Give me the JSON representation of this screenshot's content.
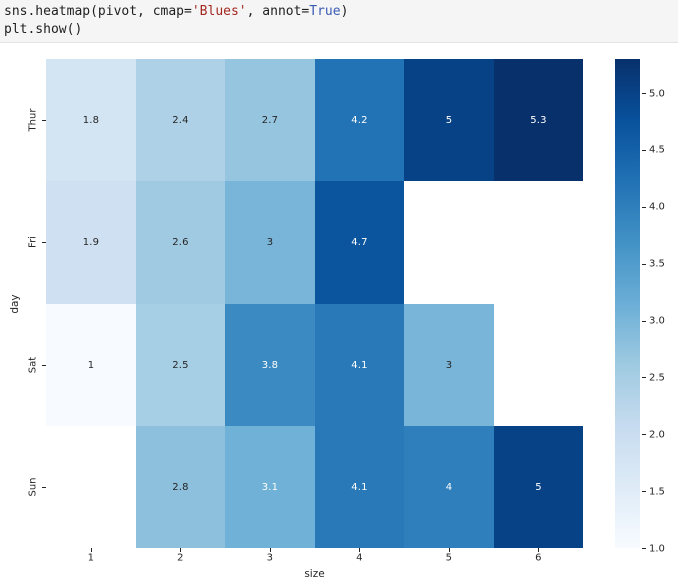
{
  "code_cell": {
    "token_colors": {
      "default": "#1f1f1f",
      "string": "#a3271f",
      "keyword": "#3a5ab4"
    },
    "lines": [
      {
        "tokens": [
          {
            "t": "sns.heatmap(pivot, cmap=",
            "c": "default"
          },
          {
            "t": "'Blues'",
            "c": "string"
          },
          {
            "t": ", annot=",
            "c": "default"
          },
          {
            "t": "True",
            "c": "keyword"
          },
          {
            "t": ")",
            "c": "default"
          }
        ]
      },
      {
        "tokens": [
          {
            "t": "plt.show()",
            "c": "default"
          }
        ]
      }
    ]
  },
  "chart_data": {
    "type": "heatmap",
    "title": "",
    "xlabel": "size",
    "ylabel": "day",
    "colormap": "Blues",
    "annot": true,
    "vmin": 1.0,
    "vmax": 5.3,
    "x_categories": [
      "1",
      "2",
      "3",
      "4",
      "5",
      "6"
    ],
    "y_categories": [
      "Thur",
      "Fri",
      "Sat",
      "Sun"
    ],
    "values": [
      [
        1.8,
        2.4,
        2.7,
        4.2,
        5,
        5.3
      ],
      [
        1.9,
        2.6,
        3,
        4.7,
        null,
        null
      ],
      [
        1,
        2.5,
        3.8,
        4.1,
        3,
        null
      ],
      [
        null,
        2.8,
        3.1,
        4.1,
        4,
        5
      ]
    ],
    "annotations": [
      [
        "1.8",
        "2.4",
        "2.7",
        "4.2",
        "5",
        "5.3"
      ],
      [
        "1.9",
        "2.6",
        "3",
        "4.7",
        "",
        ""
      ],
      [
        "1",
        "2.5",
        "3.8",
        "4.1",
        "3",
        ""
      ],
      [
        "",
        "2.8",
        "3.1",
        "4.1",
        "4",
        "5"
      ]
    ],
    "cell_colors": [
      [
        "#d3e4f3",
        "#aed1e7",
        "#96c5df",
        "#2272b6",
        "#084286",
        "#08306b"
      ],
      [
        "#cee0f1",
        "#9fcae1",
        "#79b5d9",
        "#0b559f",
        null,
        null
      ],
      [
        "#f7fbff",
        "#a6cee4",
        "#3b8bc2",
        "#2979b9",
        "#79b5d9",
        null
      ],
      [
        null,
        "#8cc0dd",
        "#70b1d7",
        "#2979b9",
        "#2f7fbc",
        "#084286"
      ]
    ],
    "annotation_text_colors": [
      [
        "d",
        "d",
        "d",
        "w",
        "w",
        "w"
      ],
      [
        "d",
        "d",
        "d",
        "w",
        null,
        null
      ],
      [
        "d",
        "d",
        "w",
        "w",
        "d",
        null
      ],
      [
        null,
        "d",
        "w",
        "w",
        "w",
        "w"
      ]
    ],
    "annotation_dark_color": "#262626",
    "annotation_light_color": "#ffffff",
    "colorbar": {
      "tick_labels": [
        "5.0",
        "4.5",
        "4.0",
        "3.5",
        "3.0",
        "2.5",
        "2.0",
        "1.5",
        "1.0"
      ],
      "tick_values": [
        5.0,
        4.5,
        4.0,
        3.5,
        3.0,
        2.5,
        2.0,
        1.5,
        1.0
      ],
      "gradient_stops_top_to_bottom": [
        "#08306b",
        "#08519c",
        "#2171b5",
        "#4292c6",
        "#6baed6",
        "#9ecae1",
        "#c6dbef",
        "#deebf7",
        "#f7fbff"
      ]
    },
    "grid": false,
    "legend_position": "colorbar-right"
  }
}
